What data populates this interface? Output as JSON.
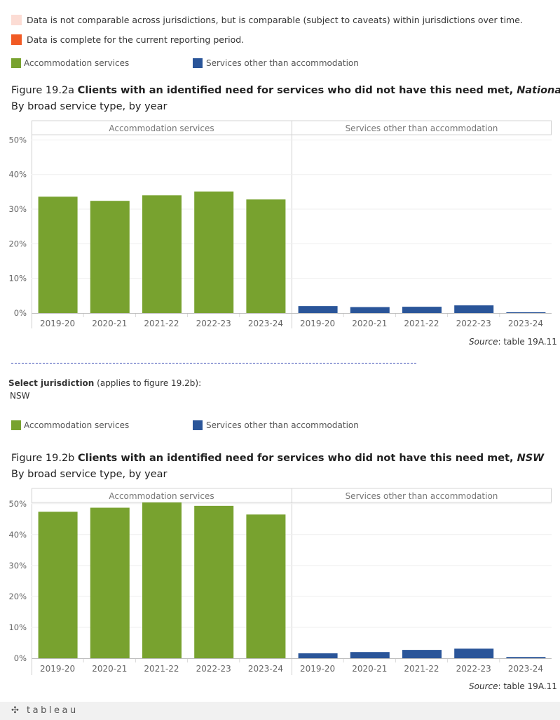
{
  "legend_top": {
    "items": [
      {
        "label": "Data is not comparable across jurisdictions, but is comparable (subject to caveats) within jurisdictions over time.",
        "color": "#fcdcd4"
      },
      {
        "label": "Data is complete for the current reporting period.",
        "color": "#f15a24"
      }
    ]
  },
  "series_legend": {
    "accommodation": {
      "label": "Accommodation services",
      "color": "#78a22f"
    },
    "other": {
      "label": "Services other than accommodation",
      "color": "#2a5599"
    }
  },
  "figure_a": {
    "prefix": "Figure 19.2a ",
    "title": "Clients with an identified need for services who did not have this need met, ",
    "jurisdiction": "National",
    "subtitle": "By broad service type, by year",
    "source_label": "Source",
    "source_text": ": table 19A.11"
  },
  "figure_b": {
    "prefix": "Figure 19.2b ",
    "title": "Clients with an identified need for services who did not have this need met, ",
    "jurisdiction": "NSW",
    "subtitle": "By broad service type, by year",
    "source_label": "Source",
    "source_text": ": table 19A.11"
  },
  "selector": {
    "label": "Select jurisdiction",
    "note": " (applies to figure 19.2b):",
    "value": "NSW"
  },
  "footer": {
    "logo": "tableau"
  },
  "chart_data": [
    {
      "type": "bar",
      "id": "a",
      "panels": [
        "Accommodation services",
        "Services other than accommodation"
      ],
      "categories": [
        "2019-20",
        "2020-21",
        "2021-22",
        "2022-23",
        "2023-24"
      ],
      "series": [
        {
          "name": "Accommodation services",
          "values": [
            33.6,
            32.4,
            34.0,
            35.1,
            32.8
          ]
        },
        {
          "name": "Services other than accommodation",
          "values": [
            2.0,
            1.7,
            1.8,
            2.2,
            0.2
          ]
        }
      ],
      "yticks": [
        0,
        10,
        20,
        30,
        40,
        50
      ],
      "tick_labels": [
        "0%",
        "10%",
        "20%",
        "30%",
        "40%",
        "50%"
      ],
      "ylim": [
        0,
        51.5
      ]
    },
    {
      "type": "bar",
      "id": "b",
      "panels": [
        "Accommodation services",
        "Services other than accommodation"
      ],
      "categories": [
        "2019-20",
        "2020-21",
        "2021-22",
        "2022-23",
        "2023-24"
      ],
      "series": [
        {
          "name": "Accommodation services",
          "values": [
            47.4,
            48.7,
            50.4,
            49.3,
            46.5
          ]
        },
        {
          "name": "Services other than accommodation",
          "values": [
            1.6,
            2.0,
            2.7,
            3.1,
            0.4
          ]
        }
      ],
      "yticks": [
        0,
        10,
        20,
        30,
        40,
        50
      ],
      "tick_labels": [
        "0%",
        "10%",
        "20%",
        "30%",
        "40%",
        "50%"
      ],
      "ylim": [
        0,
        50.4
      ]
    }
  ]
}
